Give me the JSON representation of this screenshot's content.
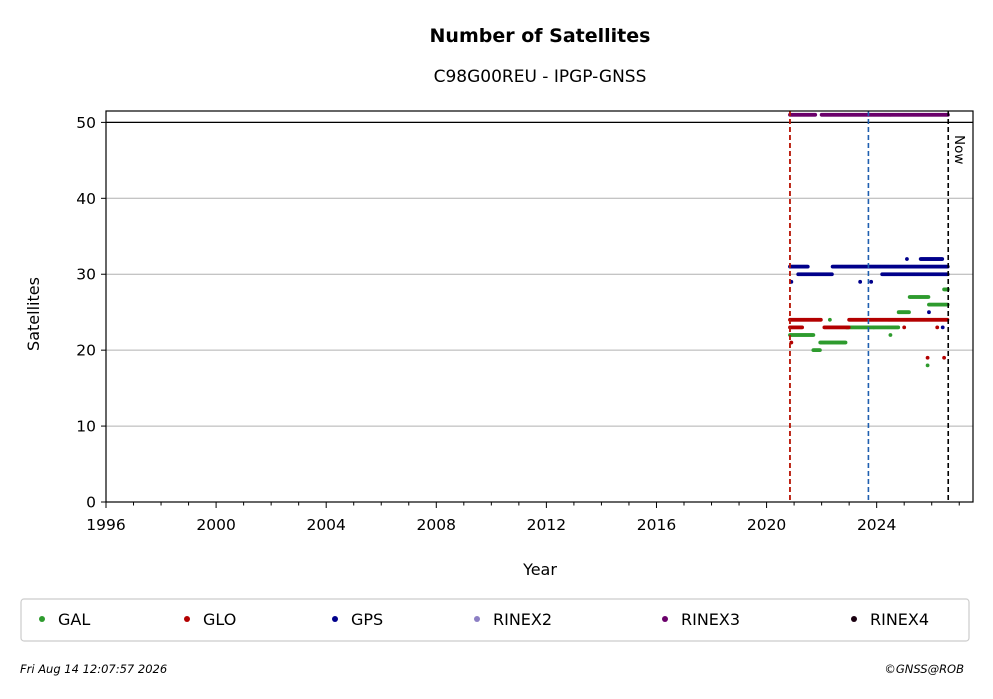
{
  "chart_data": {
    "type": "scatter",
    "title": "Number of Satellites",
    "subtitle": "C98G00REU - IPGP-GNSS",
    "xlabel": "Year",
    "ylabel": "Satellites",
    "xlim": [
      1996,
      2027.5
    ],
    "ylim": [
      0,
      51.5
    ],
    "x_ticks": [
      1996,
      2000,
      2004,
      2008,
      2012,
      2016,
      2020,
      2024
    ],
    "y_ticks": [
      0,
      10,
      20,
      30,
      40,
      50
    ],
    "grid": "horizontal",
    "legend_position": "bottom",
    "reference_line_y": 50,
    "vertical_markers": [
      {
        "x": 2020.85,
        "color": "#2ca02c"
      },
      {
        "x": 2020.85,
        "color": "#cc0000"
      },
      {
        "x": 2023.7,
        "color": "#1f5fb0"
      },
      {
        "x": 2026.6,
        "color": "#000000",
        "label": "Now"
      }
    ],
    "series": [
      {
        "name": "GAL",
        "color": "#2e9b2e",
        "segments": [
          {
            "x0": 2020.85,
            "x1": 2021.7,
            "y": 22
          },
          {
            "x0": 2021.7,
            "x1": 2021.95,
            "y": 20
          },
          {
            "x0": 2021.95,
            "x1": 2022.9,
            "y": 21
          },
          {
            "x0": 2022.9,
            "x1": 2023.9,
            "y": 23
          },
          {
            "x0": 2023.9,
            "x1": 2024.8,
            "y": 23
          },
          {
            "x0": 2024.8,
            "x1": 2025.2,
            "y": 25
          },
          {
            "x0": 2025.2,
            "x1": 2025.9,
            "y": 27
          },
          {
            "x0": 2025.9,
            "x1": 2026.6,
            "y": 26
          },
          {
            "x0": 2026.45,
            "x1": 2026.6,
            "y": 28
          }
        ],
        "outliers": [
          {
            "x": 2025.85,
            "y": 18
          },
          {
            "x": 2022.3,
            "y": 24
          },
          {
            "x": 2024.5,
            "y": 22
          }
        ]
      },
      {
        "name": "GLO",
        "color": "#b30000",
        "segments": [
          {
            "x0": 2020.85,
            "x1": 2022.0,
            "y": 24
          },
          {
            "x0": 2020.85,
            "x1": 2021.3,
            "y": 23
          },
          {
            "x0": 2022.1,
            "x1": 2023.0,
            "y": 23
          },
          {
            "x0": 2023.0,
            "x1": 2026.6,
            "y": 24
          }
        ],
        "outliers": [
          {
            "x": 2025.85,
            "y": 19
          },
          {
            "x": 2026.45,
            "y": 19
          },
          {
            "x": 2020.9,
            "y": 21
          },
          {
            "x": 2025.0,
            "y": 23
          },
          {
            "x": 2026.2,
            "y": 23
          }
        ]
      },
      {
        "name": "GPS",
        "color": "#00008b",
        "segments": [
          {
            "x0": 2020.85,
            "x1": 2021.5,
            "y": 31
          },
          {
            "x0": 2021.15,
            "x1": 2022.4,
            "y": 30
          },
          {
            "x0": 2022.4,
            "x1": 2026.6,
            "y": 31
          },
          {
            "x0": 2024.2,
            "x1": 2026.6,
            "y": 30
          },
          {
            "x0": 2025.6,
            "x1": 2026.4,
            "y": 32
          }
        ],
        "outliers": [
          {
            "x": 2020.9,
            "y": 29
          },
          {
            "x": 2023.4,
            "y": 29
          },
          {
            "x": 2023.8,
            "y": 29
          },
          {
            "x": 2025.9,
            "y": 25
          },
          {
            "x": 2026.4,
            "y": 23
          },
          {
            "x": 2025.1,
            "y": 32
          }
        ]
      },
      {
        "name": "RINEX2",
        "color": "#8c7fc4",
        "segments": [],
        "outliers": []
      },
      {
        "name": "RINEX3",
        "color": "#6a006a",
        "segments": [
          {
            "x0": 2020.85,
            "x1": 2021.8,
            "y": 51
          },
          {
            "x0": 2022.0,
            "x1": 2026.6,
            "y": 51
          }
        ],
        "outliers": []
      },
      {
        "name": "RINEX4",
        "color": "#1a0010",
        "segments": [],
        "outliers": []
      }
    ]
  },
  "footer": {
    "timestamp": "Fri Aug 14 12:07:57 2026",
    "copyright": "©GNSS@ROB"
  }
}
